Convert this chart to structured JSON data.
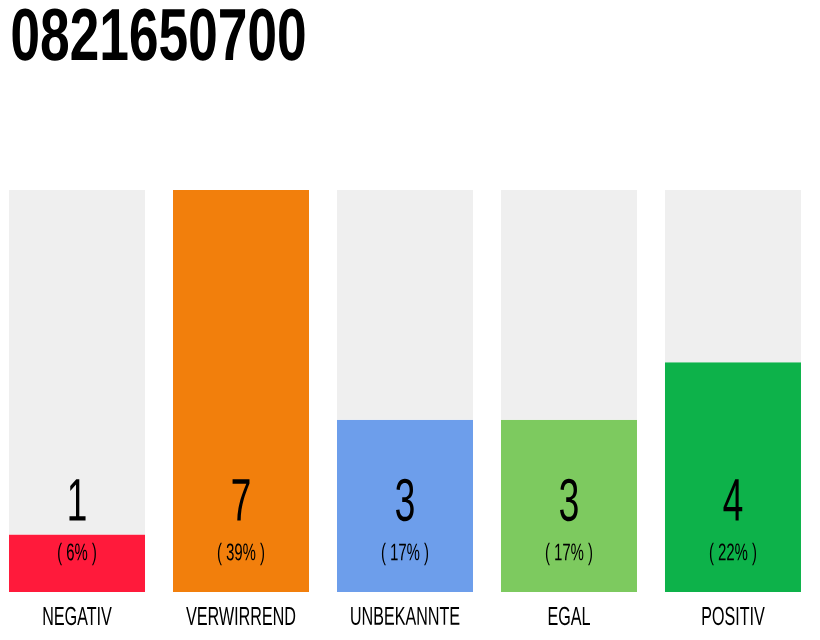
{
  "chart_data": {
    "type": "bar",
    "title": "0821650700",
    "categories": [
      "NEGATIV",
      "VERWIRREND",
      "UNBEKANNTE",
      "EGAL",
      "POSITIV"
    ],
    "stacked": true,
    "series": [
      {
        "values": [
          1,
          7,
          3,
          3,
          4
        ],
        "value_labels": [
          "1",
          "7",
          "3",
          "3",
          "4"
        ],
        "colors": [
          "#ff1a3b",
          "#f27f0c",
          "#6d9eeb",
          "#7dca5f",
          "#0db24a"
        ]
      },
      {
        "values": [
          6,
          0,
          4,
          4,
          3
        ],
        "color": "#efefef"
      }
    ],
    "annotations": [
      "( 6% )",
      "( 39% )",
      "( 17% )",
      "( 17% )",
      "( 22% )"
    ]
  }
}
